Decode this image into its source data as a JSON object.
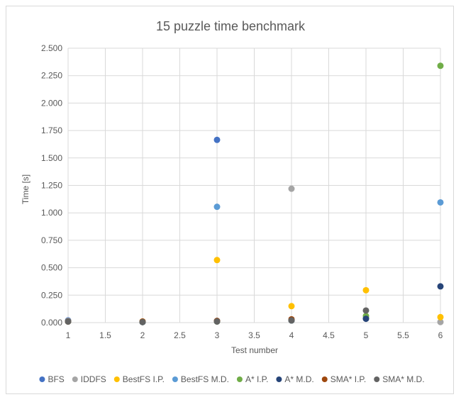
{
  "chart_data": {
    "type": "scatter",
    "title": "15 puzzle time benchmark",
    "xlabel": "Test number",
    "ylabel": "Time [s]",
    "xlim": [
      1,
      6
    ],
    "ylim": [
      0,
      2.5
    ],
    "x_ticks": [
      "1",
      "1.5",
      "2",
      "2.5",
      "3",
      "3.5",
      "4",
      "4.5",
      "5",
      "5.5",
      "6"
    ],
    "y_ticks": [
      "0.000",
      "0.250",
      "0.500",
      "0.750",
      "1.000",
      "1.250",
      "1.500",
      "1.750",
      "2.000",
      "2.250",
      "2.500"
    ],
    "grid": true,
    "legend_position": "bottom",
    "series": [
      {
        "name": "BFS",
        "color": "#4472c4",
        "points": [
          [
            1,
            0.02
          ],
          [
            2,
            0.005
          ],
          [
            3,
            1.665
          ]
        ]
      },
      {
        "name": "IDDFS",
        "color": "#a5a5a5",
        "points": [
          [
            1,
            0.015
          ],
          [
            2,
            0.005
          ],
          [
            3,
            0.01
          ],
          [
            4,
            1.22
          ],
          [
            6,
            0.005
          ]
        ]
      },
      {
        "name": "BestFS I.P.",
        "color": "#ffc000",
        "points": [
          [
            1,
            0.01
          ],
          [
            2,
            0.01
          ],
          [
            3,
            0.57
          ],
          [
            4,
            0.15
          ],
          [
            5,
            0.295
          ],
          [
            6,
            0.05
          ]
        ]
      },
      {
        "name": "BestFS M.D.",
        "color": "#5b9bd5",
        "points": [
          [
            1,
            0.01
          ],
          [
            2,
            0.005
          ],
          [
            3,
            1.055
          ],
          [
            4,
            0.02
          ],
          [
            5,
            0.04
          ],
          [
            6,
            1.095
          ]
        ]
      },
      {
        "name": "A* I.P.",
        "color": "#70ad47",
        "points": [
          [
            1,
            0.01
          ],
          [
            2,
            0.005
          ],
          [
            3,
            0.01
          ],
          [
            4,
            0.02
          ],
          [
            5,
            0.06
          ],
          [
            6,
            2.34
          ]
        ]
      },
      {
        "name": "A* M.D.",
        "color": "#264478",
        "points": [
          [
            1,
            0.01
          ],
          [
            2,
            0.005
          ],
          [
            3,
            0.015
          ],
          [
            4,
            0.02
          ],
          [
            5,
            0.035
          ],
          [
            6,
            0.33
          ]
        ]
      },
      {
        "name": "SMA* I.P.",
        "color": "#9e480e",
        "points": [
          [
            1,
            0.01
          ],
          [
            2,
            0.01
          ],
          [
            3,
            0.015
          ],
          [
            4,
            0.03
          ]
        ]
      },
      {
        "name": "SMA* M.D.",
        "color": "#636363",
        "points": [
          [
            1,
            0.01
          ],
          [
            2,
            0.005
          ],
          [
            3,
            0.01
          ],
          [
            4,
            0.02
          ],
          [
            5,
            0.11
          ]
        ]
      }
    ]
  }
}
